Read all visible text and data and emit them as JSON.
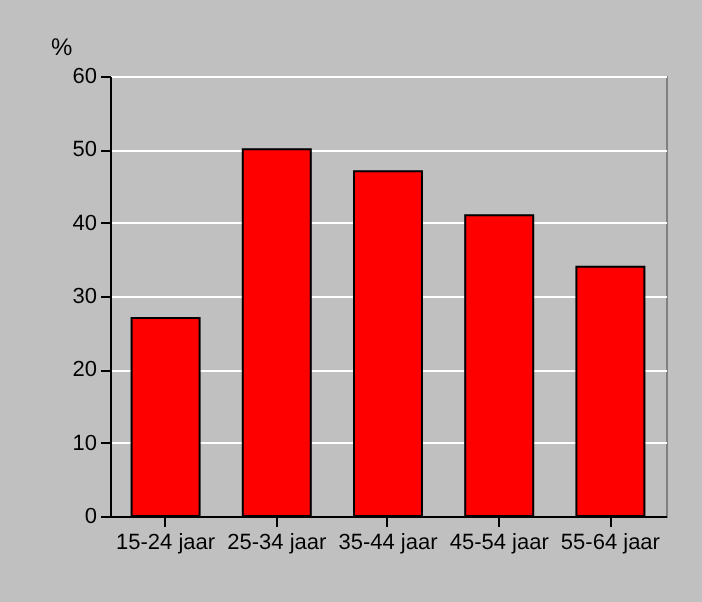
{
  "chart_data": {
    "type": "bar",
    "ylabel": "%",
    "categories": [
      "15-24 jaar",
      "25-34 jaar",
      "35-44 jaar",
      "45-54 jaar",
      "55-64 jaar"
    ],
    "values": [
      27,
      50,
      47,
      41,
      34
    ],
    "color": "#ff0000",
    "ylim": [
      0,
      60
    ],
    "yticks": [
      0,
      10,
      20,
      30,
      40,
      50,
      60
    ],
    "grid": "y"
  }
}
